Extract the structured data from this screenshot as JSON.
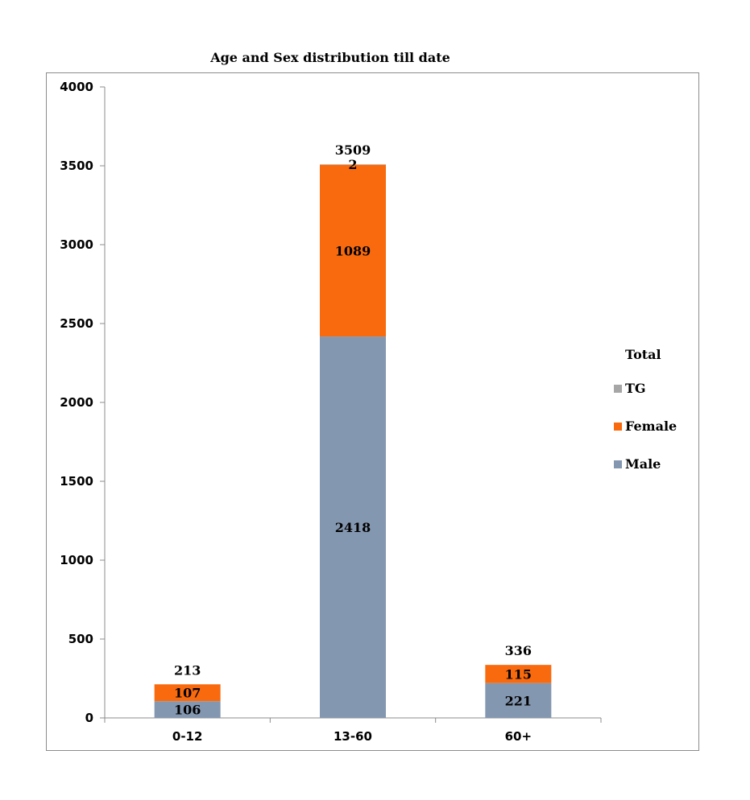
{
  "chart_data": {
    "type": "bar",
    "stacked": true,
    "title": "Age and Sex distribution till date",
    "xlabel": "",
    "ylabel": "",
    "categories": [
      "0-12",
      "13-60",
      "60+"
    ],
    "ylim": [
      0,
      4000
    ],
    "yticks": [
      0,
      500,
      1000,
      1500,
      2000,
      2500,
      3000,
      3500,
      4000
    ],
    "grid": false,
    "legend_position": "right",
    "series": [
      {
        "name": "Male",
        "values": [
          106,
          2418,
          221
        ],
        "color": "#8497b0"
      },
      {
        "name": "Female",
        "values": [
          107,
          1089,
          115
        ],
        "color": "#f96a0e"
      },
      {
        "name": "TG",
        "values": [
          0,
          2,
          0
        ],
        "color": "#a6a6a6"
      }
    ],
    "totals": {
      "name": "Total",
      "values": [
        213,
        3509,
        336
      ]
    },
    "data_labels": {
      "Male": [
        "106",
        "2418",
        "221"
      ],
      "Female": [
        "107",
        "1089",
        "115"
      ],
      "TG": [
        "",
        "2",
        ""
      ],
      "Total": [
        "213",
        "3509",
        "336"
      ]
    },
    "legend": [
      {
        "label": "Total",
        "marker": false
      },
      {
        "label": "TG",
        "color": "#a6a6a6",
        "marker": true
      },
      {
        "label": "Female",
        "color": "#f96a0e",
        "marker": true
      },
      {
        "label": "Male",
        "color": "#8497b0",
        "marker": true
      }
    ]
  }
}
